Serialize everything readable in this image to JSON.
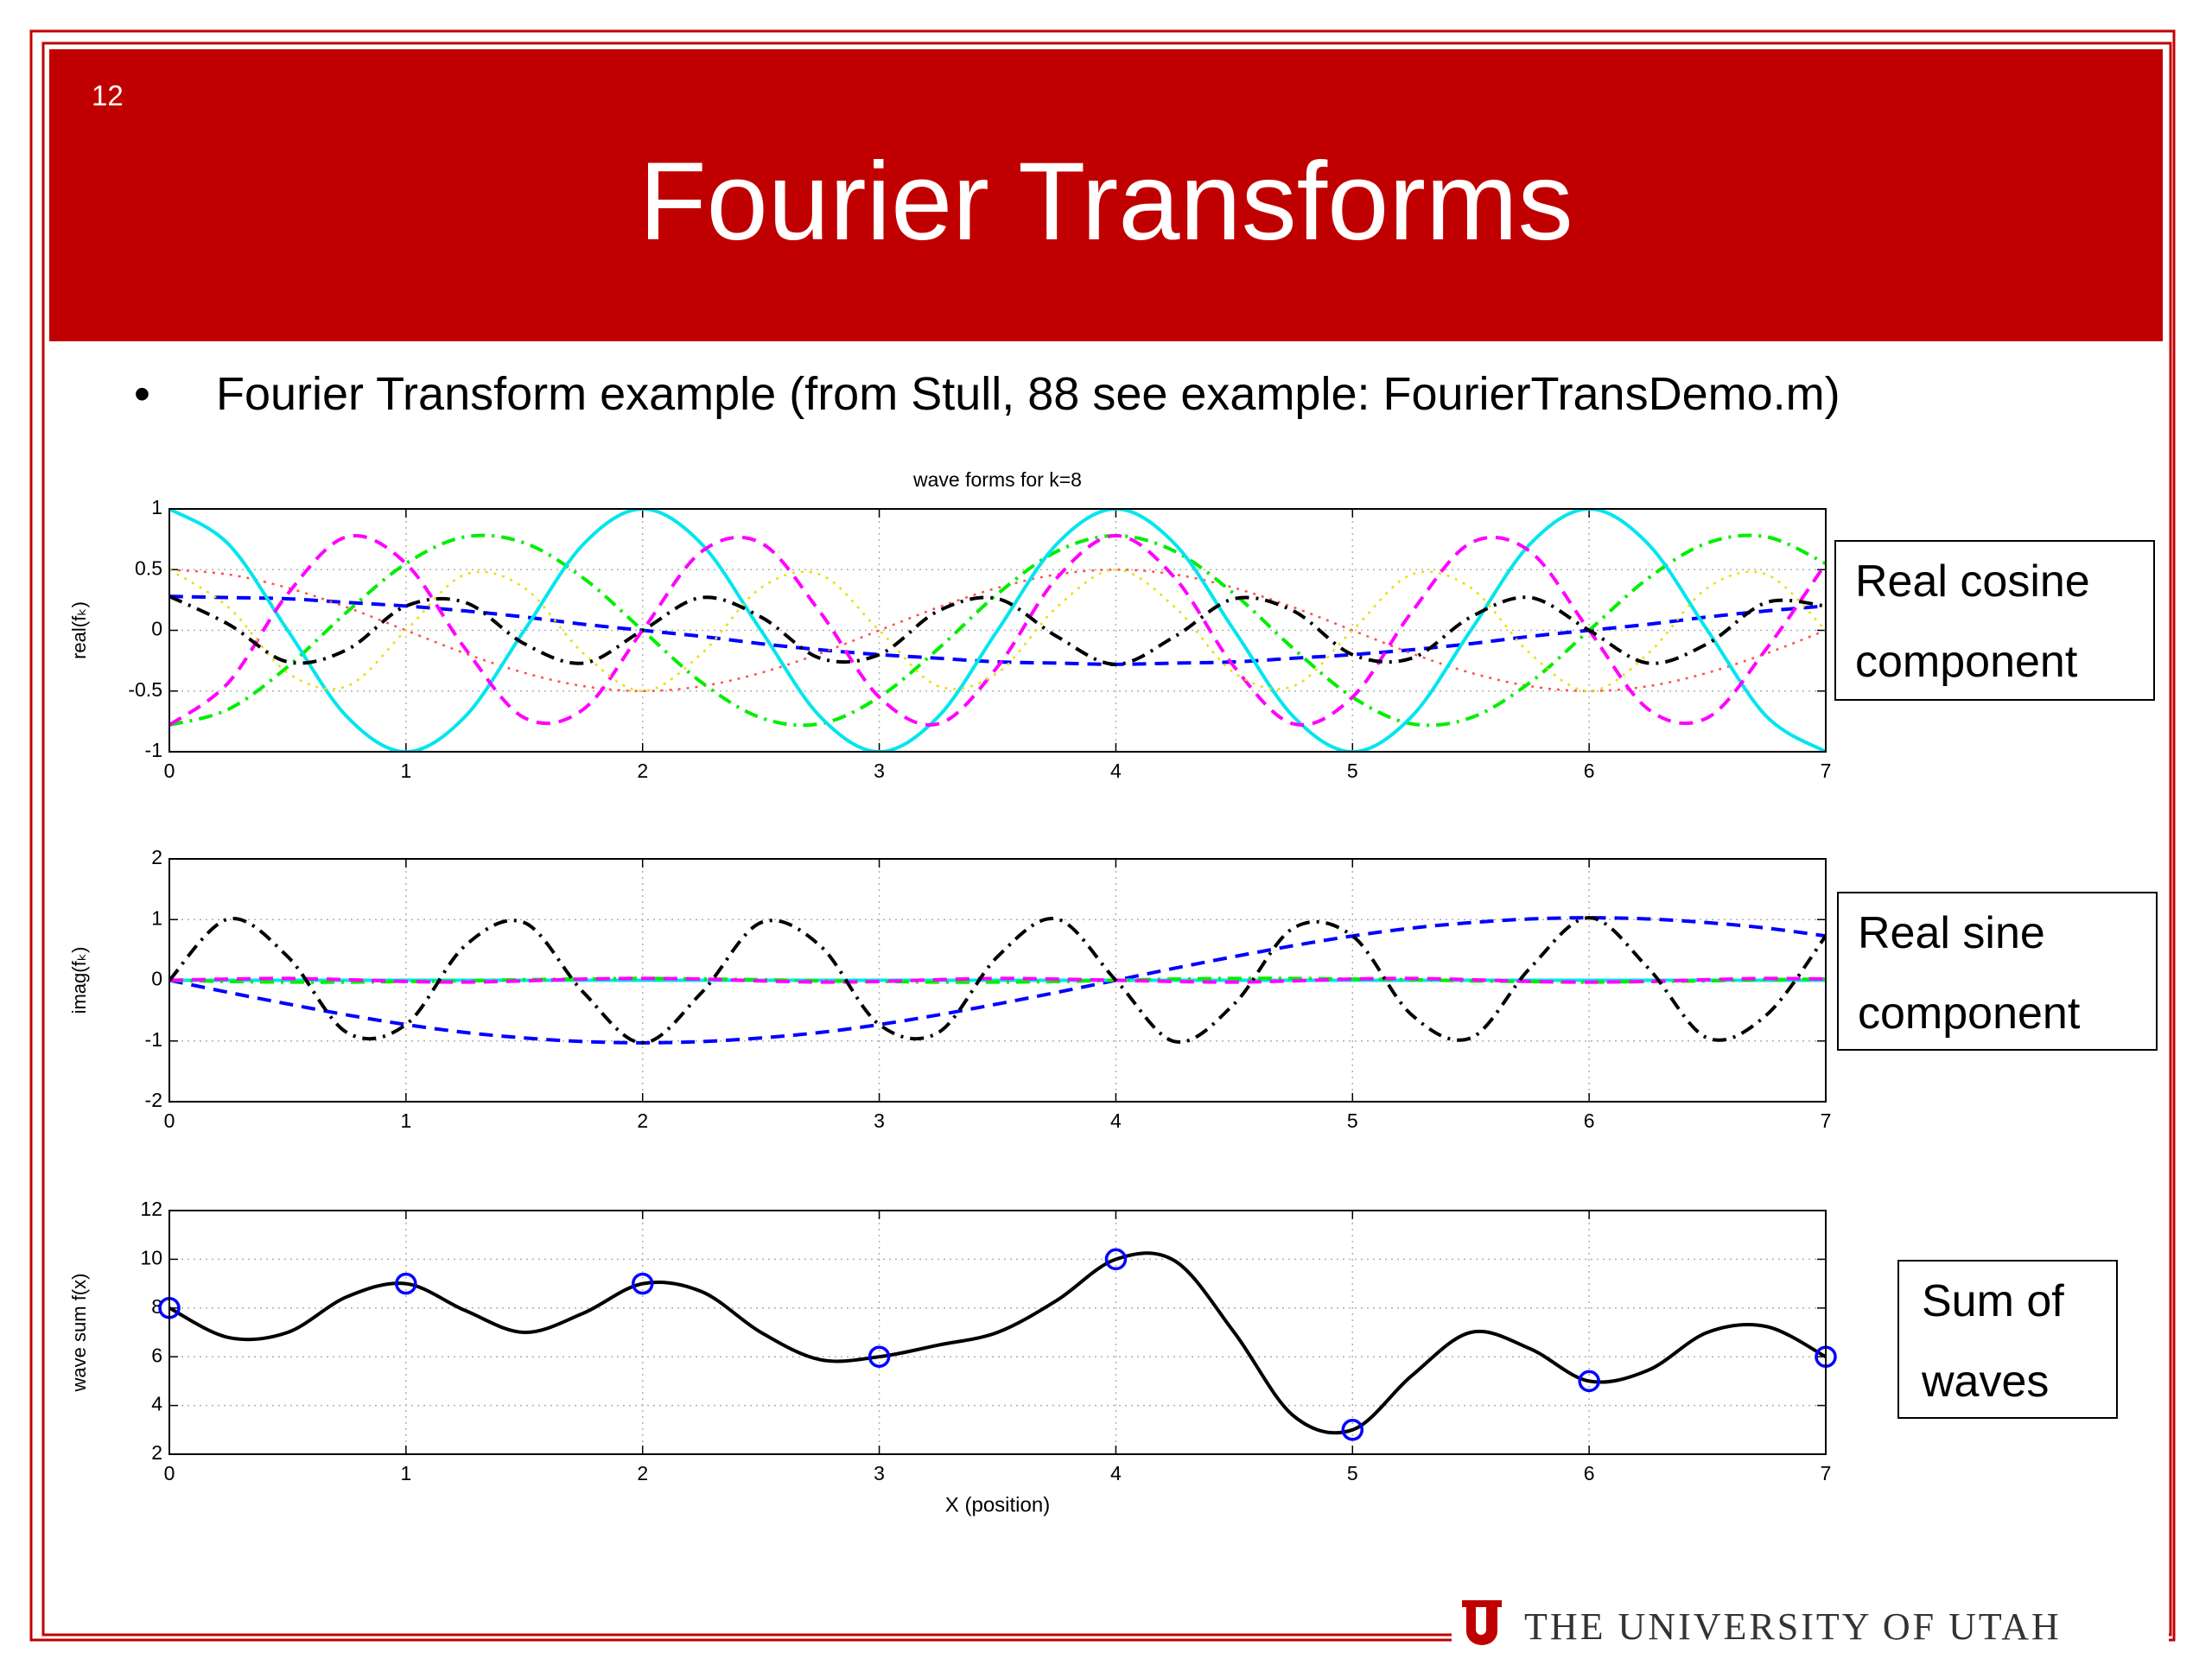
{
  "slide_number": "12",
  "title": "Fourier Transforms",
  "bullet": "Fourier Transform example (from Stull, 88 see example: FourierTransDemo.m)",
  "chart_data": [
    {
      "type": "line",
      "title": "wave forms for k=8",
      "ylabel": "real(fₖ)",
      "x": [
        0,
        0.25,
        0.5,
        0.75,
        1,
        1.25,
        1.5,
        1.75,
        2,
        2.25,
        2.5,
        2.75,
        3,
        3.25,
        3.5,
        3.75,
        4,
        4.25,
        4.5,
        4.75,
        5,
        5.25,
        5.5,
        5.75,
        6,
        6.25,
        6.5,
        6.75,
        7
      ],
      "xlim": [
        0,
        7
      ],
      "xticks": [
        0,
        1,
        2,
        3,
        4,
        5,
        6,
        7
      ],
      "ylim": [
        -1,
        1
      ],
      "yticks": [
        -1,
        -0.5,
        0,
        0.5,
        1
      ],
      "grid": true,
      "series": [
        {
          "color": "#0000ff",
          "style": "dashed",
          "values": [
            0.28,
            0.27,
            0.26,
            0.23,
            0.2,
            0.16,
            0.11,
            0.05,
            0,
            -0.05,
            -0.11,
            -0.16,
            -0.2,
            -0.23,
            -0.26,
            -0.27,
            -0.28,
            -0.27,
            -0.26,
            -0.23,
            -0.2,
            -0.16,
            -0.11,
            -0.05,
            0,
            0.05,
            0.11,
            0.16,
            0.2
          ]
        },
        {
          "color": "#ff5050",
          "style": "dotted",
          "values": [
            0.5,
            0.46,
            0.35,
            0.19,
            0,
            -0.19,
            -0.35,
            -0.46,
            -0.5,
            -0.46,
            -0.35,
            -0.19,
            0,
            0.19,
            0.35,
            0.46,
            0.5,
            0.46,
            0.35,
            0.19,
            0,
            -0.19,
            -0.35,
            -0.46,
            -0.5,
            -0.46,
            -0.35,
            -0.19,
            0
          ]
        },
        {
          "color": "#00ee00",
          "style": "dashdot",
          "values": [
            -0.78,
            -0.65,
            -0.3,
            0.15,
            0.55,
            0.77,
            0.72,
            0.43,
            0,
            -0.43,
            -0.72,
            -0.77,
            -0.55,
            -0.15,
            0.3,
            0.65,
            0.78,
            0.65,
            0.3,
            -0.15,
            -0.55,
            -0.77,
            -0.72,
            -0.43,
            0,
            0.43,
            0.72,
            0.77,
            0.55
          ]
        },
        {
          "color": "#00e5ee",
          "style": "solid",
          "values": [
            1,
            0.71,
            0,
            -0.71,
            -1,
            -0.71,
            0,
            0.71,
            1,
            0.71,
            0,
            -0.71,
            -1,
            -0.71,
            0,
            0.71,
            1,
            0.71,
            0,
            -0.71,
            -1,
            -0.71,
            0,
            0.71,
            1,
            0.71,
            0,
            -0.71,
            -1
          ]
        },
        {
          "color": "#ff00ff",
          "style": "dashed",
          "values": [
            -0.78,
            -0.43,
            0.3,
            0.77,
            0.55,
            -0.15,
            -0.72,
            -0.65,
            0,
            0.65,
            0.72,
            0.15,
            -0.55,
            -0.77,
            -0.3,
            0.43,
            0.78,
            0.43,
            -0.3,
            -0.77,
            -0.55,
            0.15,
            0.72,
            0.65,
            0,
            -0.65,
            -0.72,
            -0.15,
            0.55
          ]
        },
        {
          "color": "#e8e000",
          "style": "dotted",
          "values": [
            0.5,
            0.19,
            -0.35,
            -0.46,
            0,
            0.46,
            0.35,
            -0.19,
            -0.5,
            -0.19,
            0.35,
            0.46,
            0,
            -0.46,
            -0.35,
            0.19,
            0.5,
            0.19,
            -0.35,
            -0.46,
            0,
            0.46,
            0.35,
            -0.19,
            -0.5,
            -0.19,
            0.35,
            0.46,
            0
          ]
        },
        {
          "color": "#000000",
          "style": "dashdot",
          "values": [
            0.28,
            0.05,
            -0.26,
            -0.16,
            0.2,
            0.23,
            -0.11,
            -0.27,
            0,
            0.27,
            0.11,
            -0.23,
            -0.2,
            0.16,
            0.26,
            -0.05,
            -0.28,
            -0.05,
            0.26,
            0.16,
            -0.2,
            -0.23,
            0.11,
            0.27,
            0,
            -0.27,
            -0.11,
            0.23,
            0.2
          ]
        }
      ]
    },
    {
      "type": "line",
      "ylabel": "imag(fₖ)",
      "x": [
        0,
        0.25,
        0.5,
        0.75,
        1,
        1.25,
        1.5,
        1.75,
        2,
        2.25,
        2.5,
        2.75,
        3,
        3.25,
        3.5,
        3.75,
        4,
        4.25,
        4.5,
        4.75,
        5,
        5.25,
        5.5,
        5.75,
        6,
        6.25,
        6.5,
        6.75,
        7
      ],
      "xlim": [
        0,
        7
      ],
      "xticks": [
        0,
        1,
        2,
        3,
        4,
        5,
        6,
        7
      ],
      "ylim": [
        -2,
        2
      ],
      "yticks": [
        -2,
        -1,
        0,
        1,
        2
      ],
      "grid": true,
      "series": [
        {
          "color": "#0000ff",
          "style": "dashed",
          "values": [
            0,
            -0.2,
            -0.39,
            -0.57,
            -0.73,
            -0.86,
            -0.95,
            -1.01,
            -1.03,
            -1.01,
            -0.95,
            -0.86,
            -0.73,
            -0.57,
            -0.39,
            -0.2,
            0,
            0.2,
            0.39,
            0.57,
            0.73,
            0.86,
            0.95,
            1.01,
            1.03,
            1.01,
            0.95,
            0.86,
            0.73
          ]
        },
        {
          "color": "#00e5ee",
          "style": "solid",
          "values": [
            0,
            0,
            0,
            0,
            0,
            0,
            0,
            0,
            0,
            0,
            0,
            0,
            0,
            0,
            0,
            0,
            0,
            0,
            0,
            0,
            0,
            0,
            0,
            0,
            0,
            0,
            0,
            0,
            0
          ]
        },
        {
          "color": "#00ee00",
          "style": "dashdot",
          "values": [
            0,
            -0.02,
            -0.03,
            -0.03,
            -0.02,
            -0.01,
            0.01,
            0.02,
            0.03,
            0.02,
            0.01,
            -0.01,
            -0.02,
            -0.03,
            -0.03,
            -0.02,
            0,
            0.02,
            0.03,
            0.03,
            0.02,
            0.01,
            -0.01,
            -0.02,
            -0.03,
            -0.02,
            -0.01,
            0.01,
            0.02
          ]
        },
        {
          "color": "#ff00ff",
          "style": "dashed",
          "values": [
            0,
            0.02,
            0.03,
            0.01,
            -0.02,
            -0.03,
            -0.01,
            0.02,
            0.03,
            0.02,
            -0.01,
            -0.03,
            -0.02,
            0.01,
            0.03,
            0.02,
            0,
            -0.02,
            -0.03,
            -0.01,
            0.02,
            0.03,
            0.01,
            -0.02,
            -0.03,
            -0.02,
            0.01,
            0.03,
            0.02
          ]
        },
        {
          "color": "#000000",
          "style": "dashdot",
          "values": [
            0,
            1.01,
            0.39,
            -0.86,
            -0.73,
            0.57,
            0.95,
            -0.2,
            -1.03,
            -0.2,
            0.95,
            0.57,
            -0.73,
            -0.86,
            0.39,
            1.01,
            0,
            -1.01,
            -0.39,
            0.86,
            0.73,
            -0.57,
            -0.95,
            0.2,
            1.03,
            0.2,
            -0.95,
            -0.57,
            0.73
          ]
        }
      ]
    },
    {
      "type": "line",
      "ylabel": "wave sum f(x)",
      "xlabel": "X (position)",
      "x": [
        0,
        0.25,
        0.5,
        0.75,
        1,
        1.25,
        1.5,
        1.75,
        2,
        2.25,
        2.5,
        2.75,
        3,
        3.25,
        3.5,
        3.75,
        4,
        4.25,
        4.5,
        4.75,
        5,
        5.25,
        5.5,
        5.75,
        6,
        6.25,
        6.5,
        6.75,
        7
      ],
      "xlim": [
        0,
        7
      ],
      "xticks": [
        0,
        1,
        2,
        3,
        4,
        5,
        6,
        7
      ],
      "ylim": [
        2,
        12
      ],
      "yticks": [
        2,
        4,
        6,
        8,
        10,
        12
      ],
      "grid": true,
      "series": [
        {
          "color": "#000000",
          "style": "solid",
          "values": [
            8,
            6.79,
            7,
            8.46,
            9,
            7.9,
            7,
            7.79,
            9,
            8.67,
            7,
            5.88,
            6,
            6.48,
            7,
            8.31,
            10,
            9.93,
            7,
            3.58,
            3,
            5.22,
            7,
            6.33,
            5,
            5.45,
            7,
            7.24,
            6
          ]
        }
      ],
      "points": {
        "color": "#0000ff",
        "marker": "circle",
        "x": [
          0,
          1,
          2,
          3,
          4,
          5,
          6,
          7
        ],
        "values": [
          8,
          9,
          9,
          6,
          10,
          3,
          5,
          6
        ]
      }
    }
  ],
  "callouts": [
    "Real cosine component",
    "Real sine component",
    "Sum of waves"
  ],
  "footer": "THE UNIVERSITY OF UTAH"
}
